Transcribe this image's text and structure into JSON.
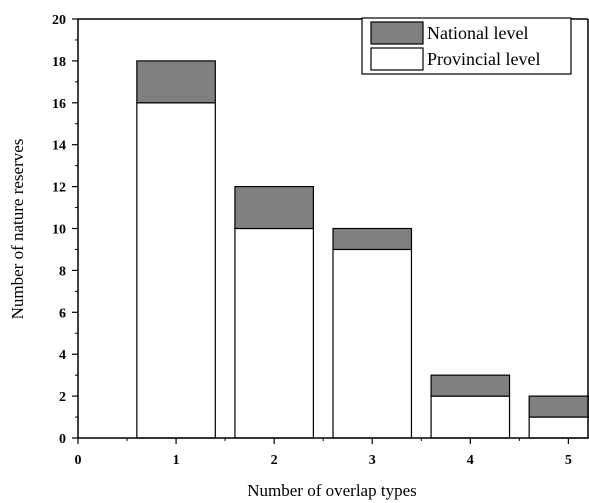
{
  "chart_data": {
    "type": "bar",
    "stacked": true,
    "xlabel": "Number of overlap types",
    "ylabel": "Number of nature reserves",
    "x_ticks": [
      "0",
      "1",
      "2",
      "3",
      "4",
      "5"
    ],
    "y_ticks": [
      "0",
      "2",
      "4",
      "6",
      "8",
      "10",
      "12",
      "14",
      "16",
      "18",
      "20"
    ],
    "xlim": [
      0,
      5
    ],
    "ylim": [
      0,
      20
    ],
    "categories": [
      1,
      2,
      3,
      4,
      5
    ],
    "series": [
      {
        "name": "Provincial level",
        "values": [
          16,
          10,
          9,
          2,
          1
        ],
        "color": "#ffffff"
      },
      {
        "name": "National level",
        "values": [
          2,
          2,
          1,
          1,
          1
        ],
        "color": "#808080"
      }
    ],
    "legend": {
      "position": "top-right",
      "entries": [
        "National level",
        "Provincial level"
      ]
    },
    "grid": false
  }
}
